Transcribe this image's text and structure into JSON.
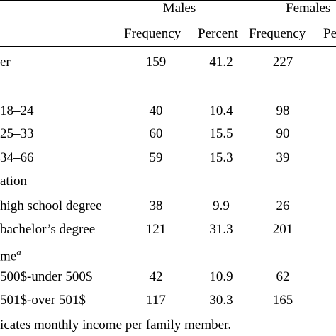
{
  "header": {
    "group_males": "Males",
    "group_females": "Females",
    "col_freq_m": "Frequency",
    "col_pct_m": "Percent",
    "col_freq_f": "Frequency",
    "col_pct_f": "Pe"
  },
  "rows": [
    {
      "label": "er",
      "mf": "159",
      "mp": "41.2",
      "ff": "227"
    },
    {
      "label": "",
      "mf": "",
      "mp": "",
      "ff": ""
    },
    {
      "label": "18–24",
      "mf": "40",
      "mp": "10.4",
      "ff": "98"
    },
    {
      "label": "25–33",
      "mf": "60",
      "mp": "15.5",
      "ff": "90"
    },
    {
      "label": "34–66",
      "mf": "59",
      "mp": "15.3",
      "ff": "39"
    },
    {
      "label": "ation",
      "mf": "",
      "mp": "",
      "ff": ""
    },
    {
      "label": "high school degree",
      "mf": "38",
      "mp": "9.9",
      "ff": "26"
    },
    {
      "label": "bachelor’s degree",
      "mf": "121",
      "mp": "31.3",
      "ff": "201"
    },
    {
      "label": "me",
      "sup": "a",
      "mf": "",
      "mp": "",
      "ff": ""
    },
    {
      "label": "500$-under 500$",
      "mf": "42",
      "mp": "10.9",
      "ff": "62"
    },
    {
      "label": "501$-over 501$",
      "mf": "117",
      "mp": "30.3",
      "ff": "165"
    }
  ],
  "footnote": "icates monthly income per family member."
}
